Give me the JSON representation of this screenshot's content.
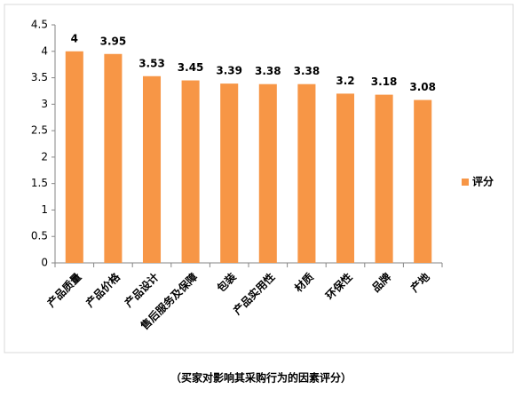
{
  "chart_data": {
    "type": "bar",
    "categories": [
      "产品质量",
      "产品价格",
      "产品设计",
      "售后服务及保障",
      "包装",
      "产品实用性",
      "材质",
      "环保性",
      "品牌",
      "产地"
    ],
    "series": [
      {
        "name": "评分",
        "color": "#f79646",
        "values": [
          4,
          3.95,
          3.53,
          3.45,
          3.39,
          3.38,
          3.38,
          3.2,
          3.18,
          3.08
        ]
      }
    ],
    "ylim": [
      0,
      4.5
    ],
    "yticks": [
      0,
      0.5,
      1,
      1.5,
      2,
      2.5,
      3,
      3.5,
      4,
      4.5
    ],
    "grid": false,
    "legend": "right",
    "caption": "（买家对影响其采购行为的因素评分）"
  }
}
